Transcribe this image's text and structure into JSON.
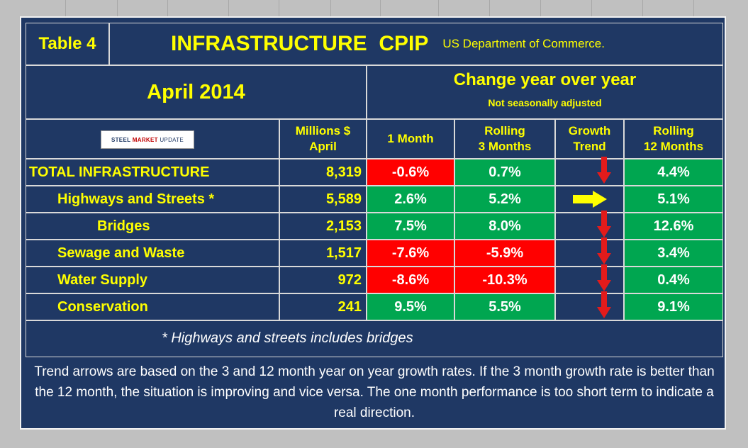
{
  "header": {
    "table_label": "Table 4",
    "title": "INFRASTRUCTURE  CPIP",
    "source": "US Department of Commerce."
  },
  "period": "April 2014",
  "change_header": "Change year over year",
  "adjustment_note": "Not seasonally adjusted",
  "logo": {
    "text_a": "STEEL",
    "text_b": "MARKET",
    "text_c": "UPDATE"
  },
  "columns": {
    "millions_line1": "Millions $",
    "millions_line2": "April",
    "one_month": "1 Month",
    "rolling3_line1": "Rolling",
    "rolling3_line2": "3 Months",
    "growth_line1": "Growth",
    "growth_line2": "Trend",
    "rolling12_line1": "Rolling",
    "rolling12_line2": "12 Months"
  },
  "rows": [
    {
      "label": "TOTAL INFRASTRUCTURE",
      "millions": "8,319",
      "one_month": "-0.6%",
      "one_month_status": "red",
      "rolling3": "0.7%",
      "rolling3_status": "green",
      "trend": "down",
      "rolling12": "4.4%"
    },
    {
      "label": "Highways and Streets *",
      "millions": "5,589",
      "one_month": "2.6%",
      "one_month_status": "green",
      "rolling3": "5.2%",
      "rolling3_status": "green",
      "trend": "right",
      "rolling12": "5.1%"
    },
    {
      "label": "Bridges",
      "millions": "2,153",
      "one_month": "7.5%",
      "one_month_status": "green",
      "rolling3": "8.0%",
      "rolling3_status": "green",
      "trend": "down",
      "rolling12": "12.6%"
    },
    {
      "label": "Sewage and Waste",
      "millions": "1,517",
      "one_month": "-7.6%",
      "one_month_status": "red",
      "rolling3": "-5.9%",
      "rolling3_status": "red",
      "trend": "down",
      "rolling12": "3.4%"
    },
    {
      "label": "Water Supply",
      "millions": "972",
      "one_month": "-8.6%",
      "one_month_status": "red",
      "rolling3": "-10.3%",
      "rolling3_status": "red",
      "trend": "down",
      "rolling12": "0.4%"
    },
    {
      "label": "Conservation",
      "millions": "241",
      "one_month": "9.5%",
      "one_month_status": "green",
      "rolling3": "5.5%",
      "rolling3_status": "green",
      "trend": "down",
      "rolling12": "9.1%"
    }
  ],
  "footnote": "* Highways and streets includes bridges",
  "explanation": "Trend arrows are based on the 3 and 12 month year on year growth rates. If the 3 month growth rate is better than the 12 month, the situation is improving and vice versa. The one month performance is too short term to indicate a real direction.",
  "colors": {
    "navy": "#1f3864",
    "yellow": "#ffff00",
    "red": "#ff0000",
    "green": "#00a650",
    "arrow_down": "#e31b1b",
    "arrow_right": "#ffff00"
  }
}
